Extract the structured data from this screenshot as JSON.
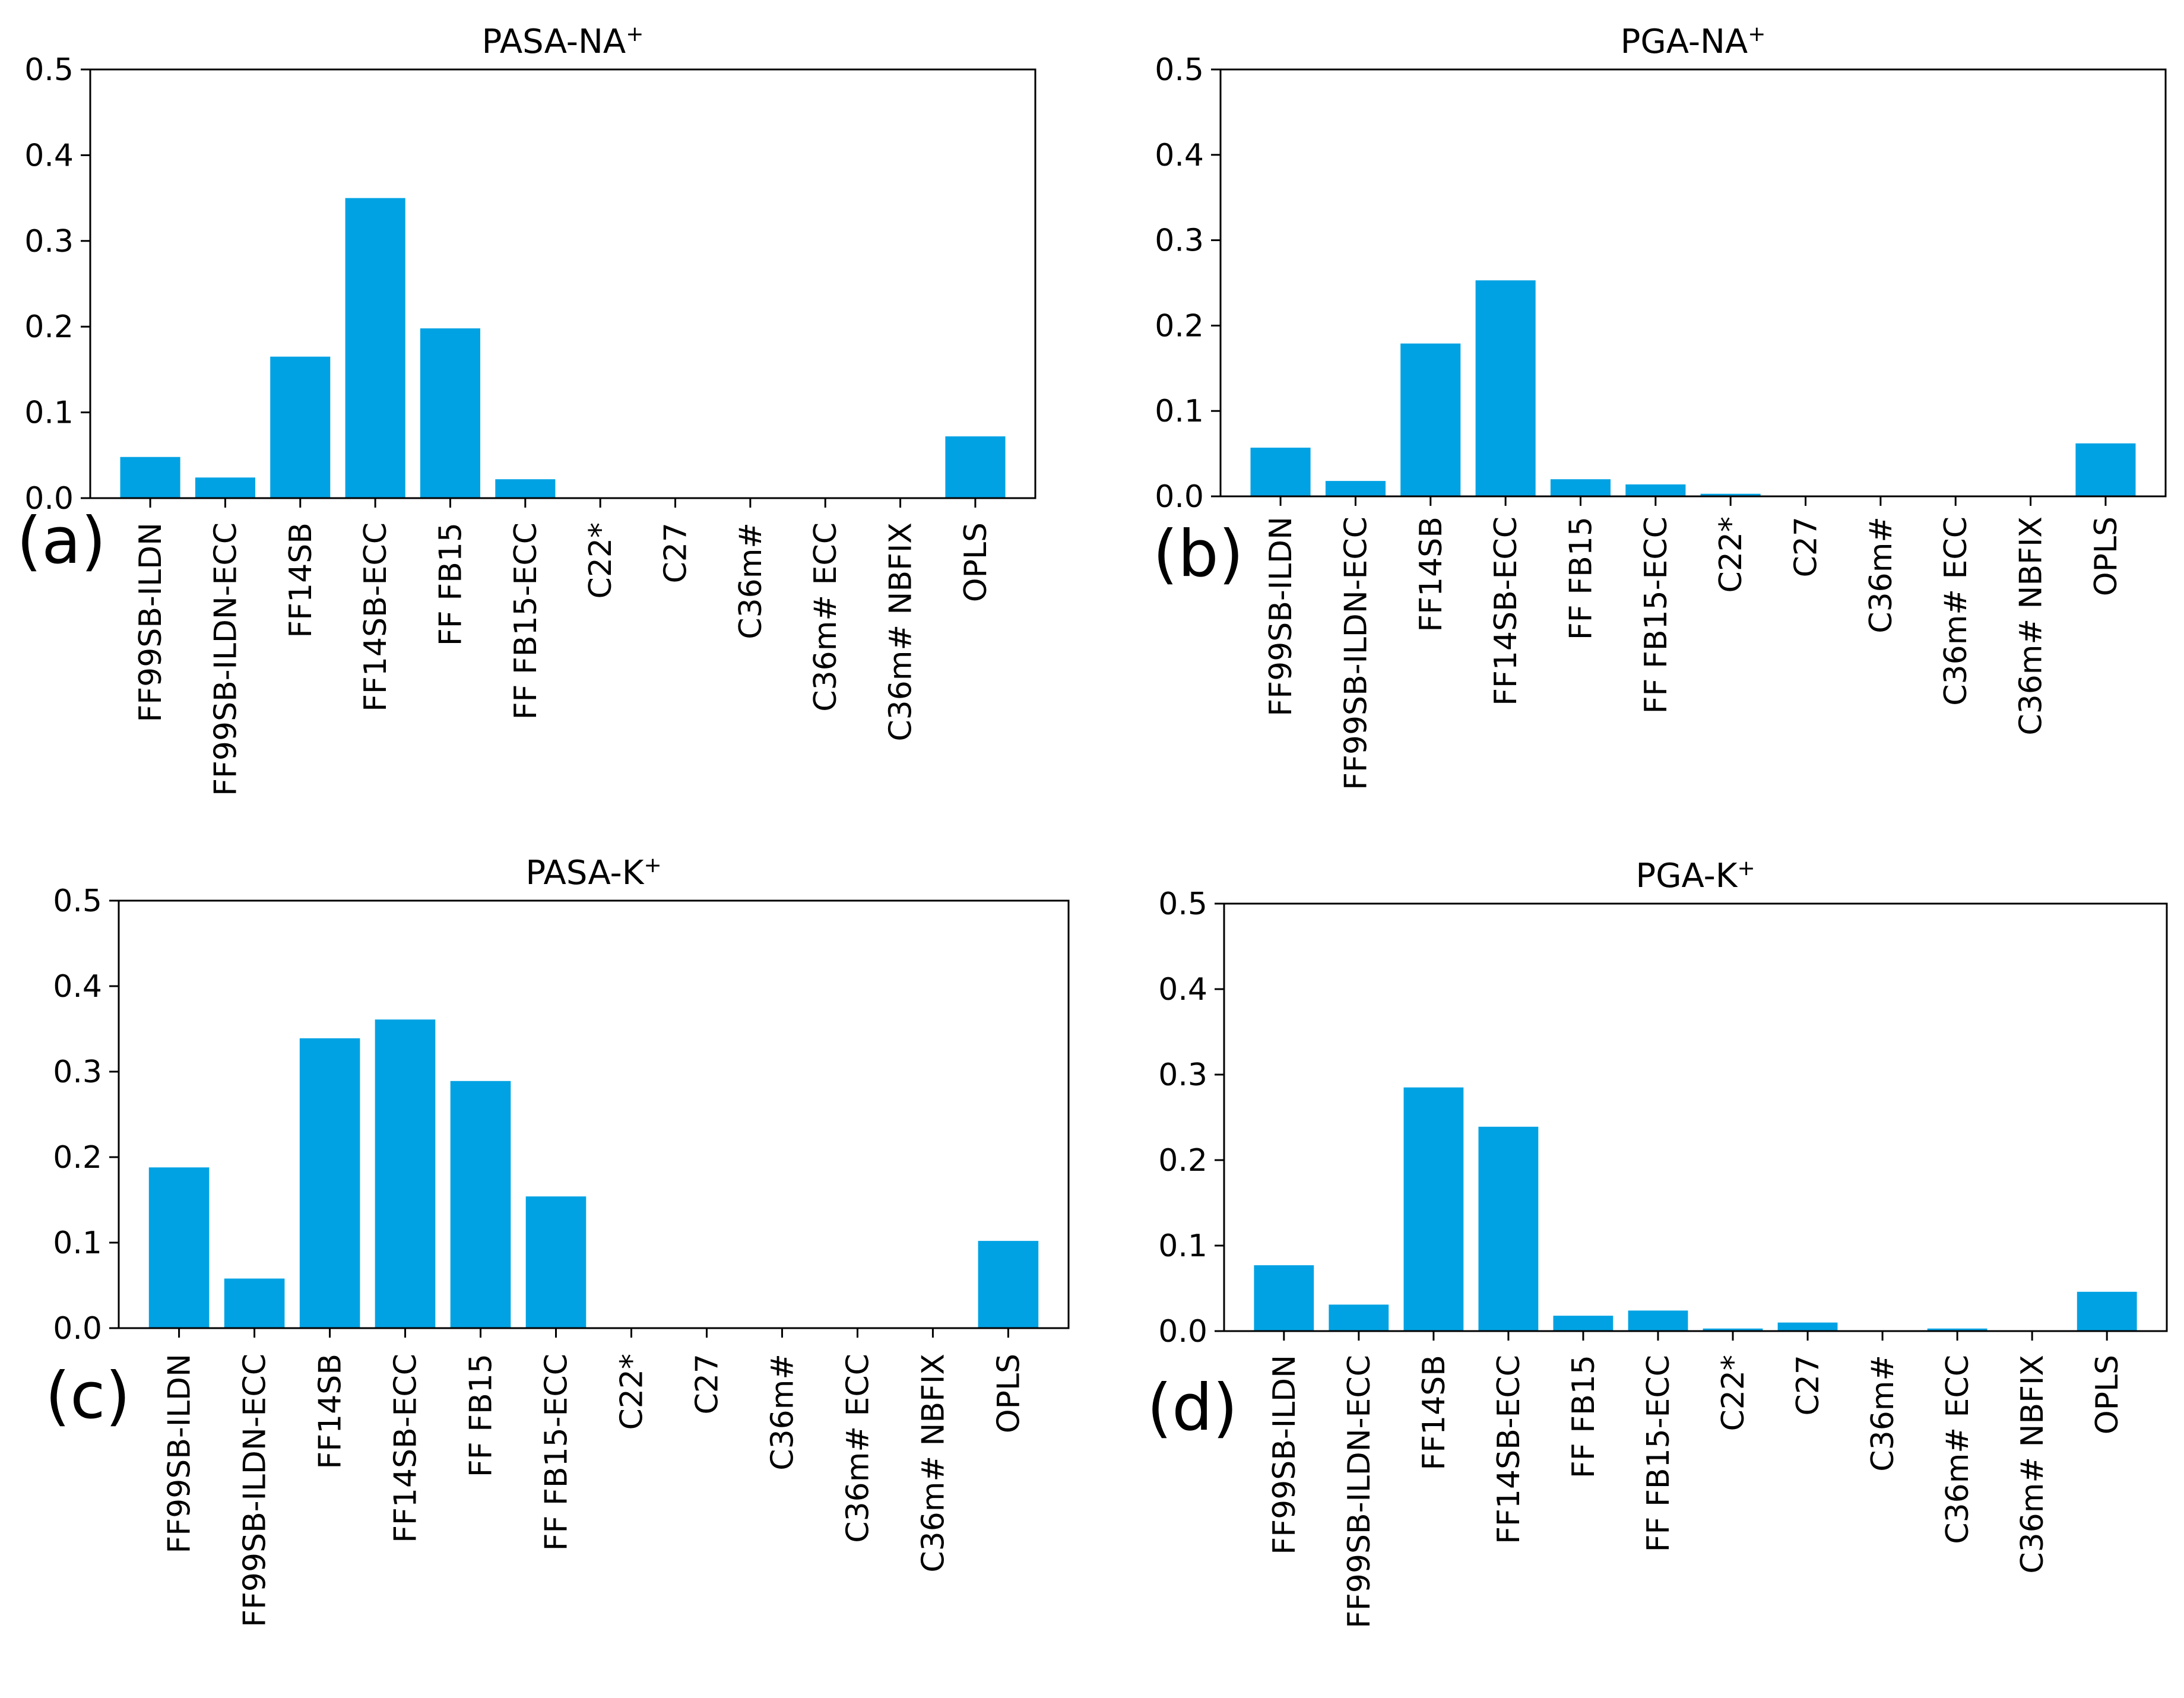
{
  "colors": {
    "bar": "#00a2e3",
    "axis": "#000000",
    "background": "#ffffff"
  },
  "chart_data": [
    {
      "type": "bar",
      "title": "PASA-NA",
      "title_superscript": "+",
      "panel_letter": "(a)",
      "categories": [
        "FF99SB-ILDN",
        "FF99SB-ILDN-ECC",
        "FF14SB",
        "FF14SB-ECC",
        "FF FB15",
        "FF FB15-ECC",
        "C22*",
        "C27",
        "C36m#",
        "C36m# ECC",
        "C36m# NBFIX",
        "OPLS"
      ],
      "values": [
        0.048,
        0.024,
        0.165,
        0.35,
        0.198,
        0.022,
        0.0,
        0.0,
        0.0,
        0.0,
        0.0,
        0.072
      ],
      "yticks": [
        "0.0",
        "0.1",
        "0.2",
        "0.3",
        "0.4",
        "0.5"
      ],
      "ylim": [
        0,
        0.5
      ],
      "grid": false,
      "xlabel": "",
      "ylabel": ""
    },
    {
      "type": "bar",
      "title": "PGA-NA",
      "title_superscript": "+",
      "panel_letter": "(b)",
      "categories": [
        "FF99SB-ILDN",
        "FF99SB-ILDN-ECC",
        "FF14SB",
        "FF14SB-ECC",
        "FF FB15",
        "FF FB15-ECC",
        "C22*",
        "C27",
        "C36m#",
        "C36m# ECC",
        "C36m# NBFIX",
        "OPLS"
      ],
      "values": [
        0.057,
        0.018,
        0.179,
        0.253,
        0.02,
        0.014,
        0.003,
        0.0,
        0.0,
        0.0,
        0.0,
        0.062
      ],
      "yticks": [
        "0.0",
        "0.1",
        "0.2",
        "0.3",
        "0.4",
        "0.5"
      ],
      "ylim": [
        0,
        0.5
      ],
      "grid": false,
      "xlabel": "",
      "ylabel": ""
    },
    {
      "type": "bar",
      "title": "PASA-K",
      "title_superscript": "+",
      "panel_letter": "(c)",
      "categories": [
        "FF99SB-ILDN",
        "FF99SB-ILDN-ECC",
        "FF14SB",
        "FF14SB-ECC",
        "FF FB15",
        "FF FB15-ECC",
        "C22*",
        "C27",
        "C36m#",
        "C36m# ECC",
        "C36m# NBFIX",
        "OPLS"
      ],
      "values": [
        0.188,
        0.058,
        0.339,
        0.361,
        0.289,
        0.154,
        0.0,
        0.0,
        0.0,
        0.0,
        0.0,
        0.102
      ],
      "yticks": [
        "0.0",
        "0.1",
        "0.2",
        "0.3",
        "0.4",
        "0.5"
      ],
      "ylim": [
        0,
        0.5
      ],
      "grid": false,
      "xlabel": "",
      "ylabel": ""
    },
    {
      "type": "bar",
      "title": "PGA-K",
      "title_superscript": "+",
      "panel_letter": "(d)",
      "categories": [
        "FF99SB-ILDN",
        "FF99SB-ILDN-ECC",
        "FF14SB",
        "FF14SB-ECC",
        "FF FB15",
        "FF FB15-ECC",
        "C22*",
        "C27",
        "C36m#",
        "C36m# ECC",
        "C36m# NBFIX",
        "OPLS"
      ],
      "values": [
        0.077,
        0.031,
        0.285,
        0.239,
        0.018,
        0.024,
        0.003,
        0.01,
        0.0,
        0.003,
        0.0,
        0.046
      ],
      "yticks": [
        "0.0",
        "0.1",
        "0.2",
        "0.3",
        "0.4",
        "0.5"
      ],
      "ylim": [
        0,
        0.5
      ],
      "grid": false,
      "xlabel": "",
      "ylabel": ""
    }
  ]
}
